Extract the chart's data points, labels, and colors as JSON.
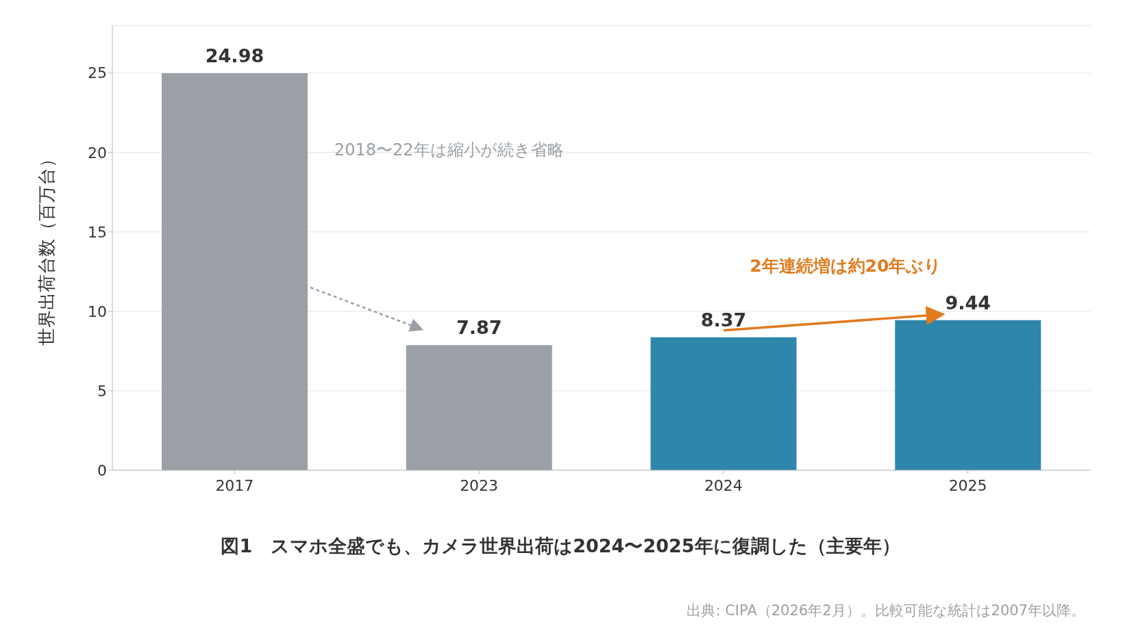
{
  "chart_data": {
    "type": "bar",
    "title": "図1　スマホ全盛でも、カメラ世界出荷は2024〜2025年に復調した（主要年）",
    "ylabel": "世界出荷台数（百万台）",
    "categories": [
      "2017",
      "2023",
      "2024",
      "2025"
    ],
    "values": [
      24.98,
      7.87,
      8.37,
      9.44
    ],
    "colors": [
      "#9aa0a6",
      "#9aa0a6",
      "#2e86ab",
      "#2e86ab"
    ],
    "ylim": [
      0,
      28
    ],
    "yticks": [
      0,
      5,
      10,
      15,
      20,
      25
    ],
    "grid": "y",
    "data_labels": true,
    "legend": false,
    "annotations": [
      "2018〜22年は縮小が続き省略",
      "2年連続増は約20年ぶり",
      "出典: CIPA（2026年2月）。比較可能な統計は2007年以降。"
    ]
  }
}
